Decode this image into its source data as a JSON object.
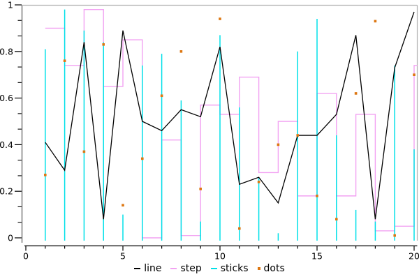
{
  "chart_data": {
    "type": "combo (line + step + sticks + dots)",
    "title": "",
    "xlabel": "",
    "ylabel": "",
    "x": [
      1,
      2,
      3,
      4,
      5,
      6,
      7,
      8,
      9,
      10,
      11,
      12,
      13,
      14,
      15,
      16,
      17,
      18,
      19,
      20
    ],
    "series": [
      {
        "name": "line",
        "type": "line",
        "color": "#000000",
        "values": [
          0.41,
          0.29,
          0.84,
          0.08,
          0.89,
          0.5,
          0.46,
          0.55,
          0.52,
          0.82,
          0.23,
          0.26,
          0.15,
          0.44,
          0.44,
          0.53,
          0.87,
          0.08,
          0.73,
          0.97
        ]
      },
      {
        "name": "step",
        "type": "step-post",
        "color": "#f2a2f2",
        "values": [
          0.9,
          0.74,
          0.98,
          0.65,
          0.85,
          0.0,
          0.42,
          0.01,
          0.57,
          0.53,
          0.69,
          0.28,
          0.5,
          0.18,
          0.62,
          0.18,
          0.53,
          0.03,
          0.05,
          0.74
        ]
      },
      {
        "name": "sticks",
        "type": "sticks",
        "color": "#00e0e8",
        "values": [
          0.81,
          0.98,
          0.89,
          0.84,
          0.1,
          0.74,
          0.79,
          0.59,
          0.07,
          0.87,
          0.56,
          0.26,
          0.02,
          0.8,
          0.94,
          0.44,
          0.12,
          0.07,
          0.74,
          0.38
        ]
      },
      {
        "name": "dots",
        "type": "dots",
        "color": "#dd7712",
        "values": [
          0.27,
          0.76,
          0.37,
          0.83,
          0.14,
          0.34,
          0.61,
          0.8,
          0.21,
          0.94,
          0.04,
          0.24,
          0.4,
          0.44,
          0.18,
          0.08,
          0.62,
          0.93,
          0.01,
          0.7
        ]
      }
    ],
    "xlim": [
      0,
      20.2
    ],
    "ylim": [
      0,
      1
    ],
    "x_major_ticks": [
      0,
      5,
      10,
      15,
      20
    ],
    "x_major_tick_labels": [
      "0",
      "5",
      "10",
      "15",
      "20"
    ],
    "x_minor_tick_every": 1,
    "y_major_ticks": [
      0,
      0.2,
      0.4,
      0.6,
      0.8,
      1
    ],
    "y_tick_labels": [
      "0",
      "0.2",
      "0.4",
      "0.6",
      "0.8",
      "1"
    ],
    "y_minor_per_major": 2,
    "grid": "off",
    "legend_position": "bottom-center",
    "frame_color": "#b0b0b0",
    "axis_color": "#000000"
  }
}
